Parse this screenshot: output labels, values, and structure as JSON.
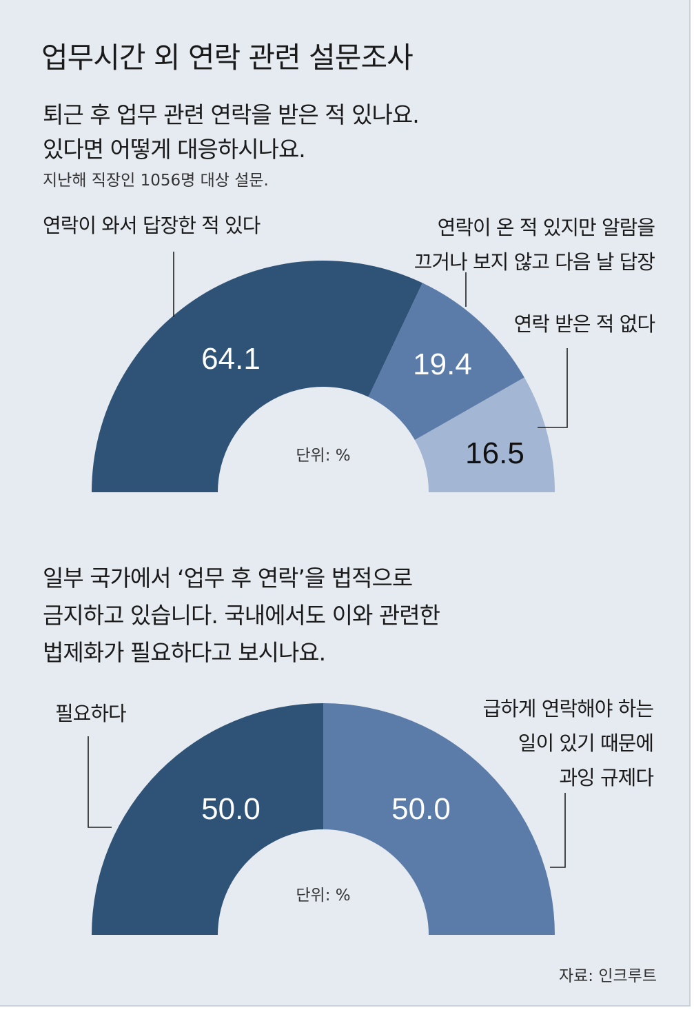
{
  "title": "업무시간 외 연락 관련 설문조사",
  "q1": {
    "line1": "퇴근 후 업무 관련 연락을 받은 적 있나요.",
    "line2": "있다면 어떻게 대응하시나요.",
    "note": "지난해 직장인 1056명 대상 설문."
  },
  "q2": {
    "line1": "일부 국가에서 ‘업무 후 연락’을 법적으로",
    "line2": "금지하고 있습니다. 국내에서도 이와 관련한",
    "line3": "법제화가 필요하다고 보시나요."
  },
  "source": "자료: 인크루트",
  "colors": {
    "background": "#e6ebf1",
    "dark_navy": "#2f5277",
    "medium_blue": "#5b7ba9",
    "light_blue": "#a3b6d4"
  },
  "chart_data": [
    {
      "type": "pie",
      "shape": "half-donut",
      "unit_label": "단위: %",
      "categories": [
        "연락이 와서 답장한 적 있다",
        "연락이 온 적 있지만 알람을 끄거나 보지 않고 다음 날 답장",
        "연락 받은 적 없다"
      ],
      "label_lines": [
        [
          "연락이 와서 답장한 적 있다"
        ],
        [
          "연락이 온 적 있지만 알람을",
          "끄거나 보지 않고 다음 날 답장"
        ],
        [
          "연락 받은 적 없다"
        ]
      ],
      "values": [
        64.1,
        19.4,
        16.5
      ],
      "value_labels": [
        "64.1",
        "19.4",
        "16.5"
      ],
      "colors": [
        "#2f5277",
        "#5b7ba9",
        "#a3b6d4"
      ]
    },
    {
      "type": "pie",
      "shape": "half-donut",
      "unit_label": "단위: %",
      "categories": [
        "필요하다",
        "급하게 연락해야 하는 일이 있기 때문에 과잉 규제다"
      ],
      "label_lines": [
        [
          "필요하다"
        ],
        [
          "급하게 연락해야 하는",
          "일이 있기 때문에",
          "과잉 규제다"
        ]
      ],
      "values": [
        50.0,
        50.0
      ],
      "value_labels": [
        "50.0",
        "50.0"
      ],
      "colors": [
        "#2f5277",
        "#5b7ba9"
      ]
    }
  ]
}
